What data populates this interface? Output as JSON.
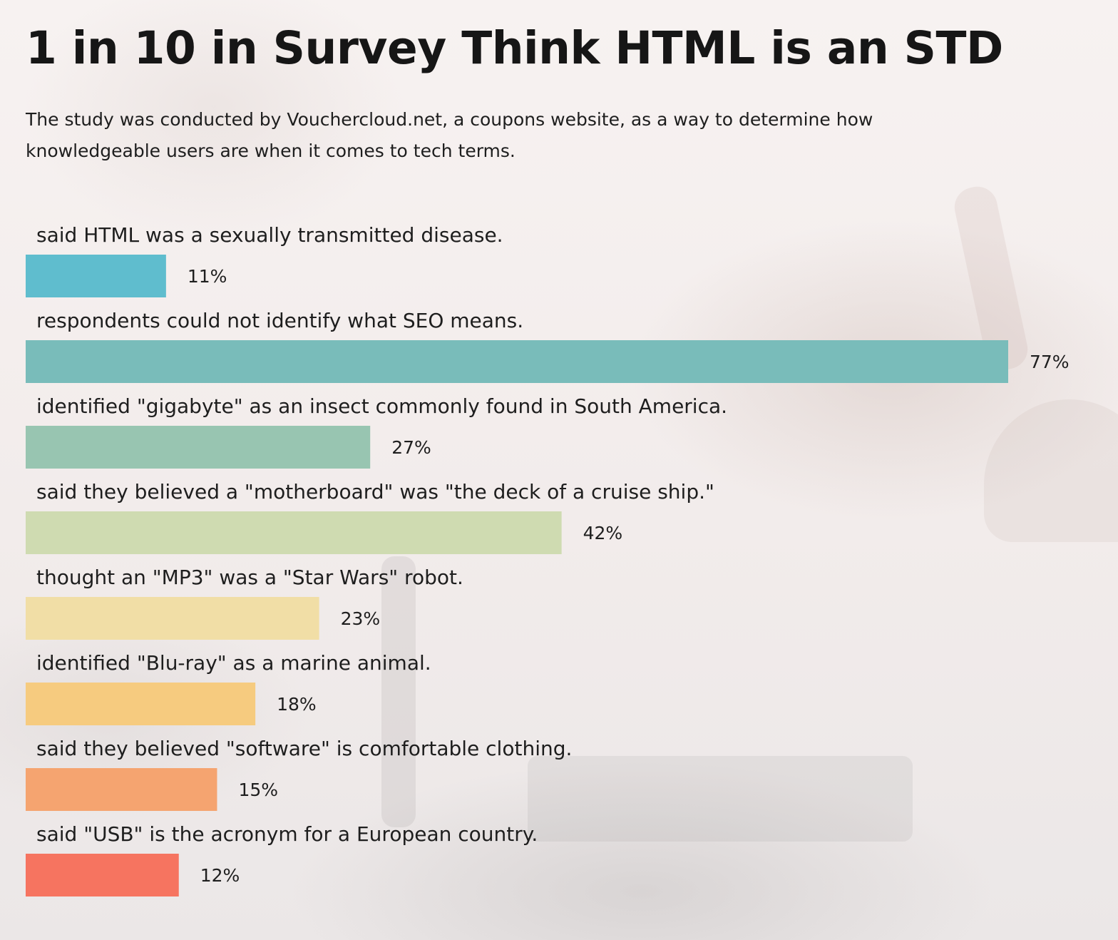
{
  "title": "1 in 10 in Survey Think HTML is an STD",
  "subtitle": "The study was conducted by Vouchercloud.net, a coupons website, as a way to determine how knowledgeable users are when it comes to tech terms.",
  "chart_data": {
    "type": "bar",
    "orientation": "horizontal",
    "title": "1 in 10 in Survey Think HTML is an STD",
    "xlabel": "",
    "ylabel": "",
    "xlim": [
      0,
      100
    ],
    "value_suffix": "%",
    "grid": false,
    "legend": "none",
    "categories": [
      "said HTML was a sexually transmitted disease.",
      "respondents could not identify what SEO means.",
      "identified \"gigabyte\" as an insect commonly found in South America.",
      "said they believed a \"motherboard\" was \"the deck of a cruise ship.\"",
      "thought an \"MP3\" was a \"Star Wars\" robot.",
      "identified \"Blu-ray\" as a marine animal.",
      "said they believed \"software\" is comfortable clothing.",
      "said \"USB\" is the acronym for a European country."
    ],
    "values": [
      11,
      77,
      27,
      42,
      23,
      18,
      15,
      12
    ],
    "value_labels": [
      "11%",
      "77%",
      "27%",
      "42%",
      "23%",
      "18%",
      "15%",
      "12%"
    ],
    "colors": [
      "#5fbdce",
      "#79bcba",
      "#98c5b1",
      "#cfdbb1",
      "#f1dea6",
      "#f6cb7f",
      "#f5a470",
      "#f67460"
    ]
  }
}
